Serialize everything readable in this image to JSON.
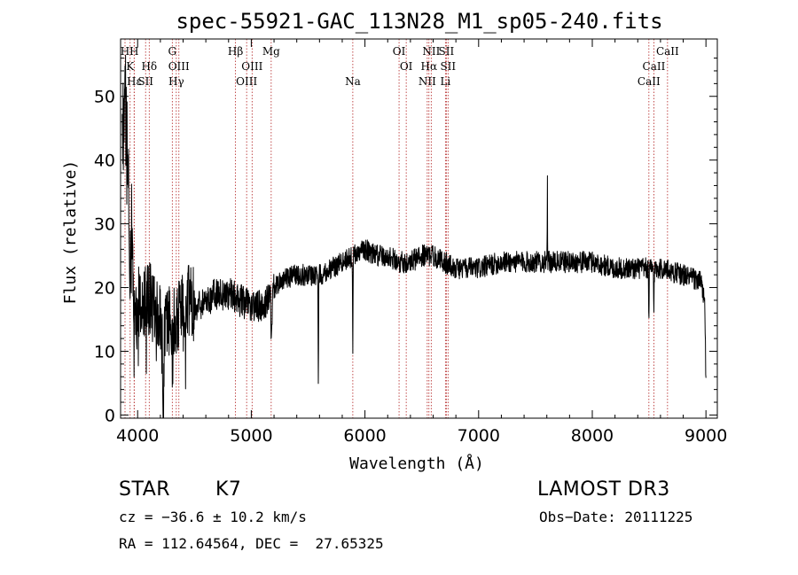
{
  "chart_data": {
    "type": "line",
    "title": "spec-55921-GAC_113N28_M1_sp05-240.fits",
    "xlabel": "Wavelength (Å)",
    "ylabel": "Flux (relative)",
    "xlim": [
      3850,
      9100
    ],
    "ylim": [
      -0.5,
      59
    ],
    "xticks": [
      4000,
      5000,
      6000,
      7000,
      8000,
      9000
    ],
    "yticks": [
      0,
      10,
      20,
      30,
      40,
      50
    ],
    "xtick_labels": [
      "4000",
      "5000",
      "6000",
      "7000",
      "8000",
      "9000"
    ],
    "ytick_labels": [
      "0",
      "10",
      "20",
      "30",
      "40",
      "50"
    ],
    "spectrum_anchors": [
      [
        3870,
        44
      ],
      [
        3890,
        52
      ],
      [
        3910,
        38
      ],
      [
        3930,
        30
      ],
      [
        3950,
        27
      ],
      [
        3970,
        20
      ],
      [
        4000,
        18
      ],
      [
        4050,
        17
      ],
      [
        4100,
        18
      ],
      [
        4150,
        17
      ],
      [
        4200,
        15
      ],
      [
        4250,
        14
      ],
      [
        4300,
        16
      ],
      [
        4350,
        15
      ],
      [
        4400,
        17
      ],
      [
        4450,
        18
      ],
      [
        4500,
        17
      ],
      [
        4600,
        18
      ],
      [
        4700,
        19
      ],
      [
        4800,
        19
      ],
      [
        4900,
        18
      ],
      [
        5000,
        17
      ],
      [
        5100,
        17
      ],
      [
        5180,
        19
      ],
      [
        5250,
        21
      ],
      [
        5400,
        22
      ],
      [
        5500,
        22
      ],
      [
        5600,
        22
      ],
      [
        5700,
        23
      ],
      [
        5800,
        24
      ],
      [
        5900,
        25
      ],
      [
        6000,
        26
      ],
      [
        6100,
        25
      ],
      [
        6200,
        25
      ],
      [
        6300,
        24
      ],
      [
        6400,
        24
      ],
      [
        6500,
        25
      ],
      [
        6600,
        25
      ],
      [
        6700,
        24
      ],
      [
        6800,
        23
      ],
      [
        7000,
        23
      ],
      [
        7200,
        24
      ],
      [
        7400,
        24
      ],
      [
        7600,
        24
      ],
      [
        7800,
        24
      ],
      [
        8000,
        24
      ],
      [
        8200,
        23
      ],
      [
        8400,
        23
      ],
      [
        8600,
        23
      ],
      [
        8800,
        22
      ],
      [
        8950,
        21
      ],
      [
        8990,
        18
      ],
      [
        9000,
        4
      ]
    ],
    "spectrum_features": [
      {
        "center": 3934,
        "depth": 12,
        "width": 5
      },
      {
        "center": 3969,
        "depth": 8,
        "width": 5
      },
      {
        "center": 4226,
        "depth": 16,
        "width": 6
      },
      {
        "center": 4305,
        "depth": 7,
        "width": 8
      },
      {
        "center": 5175,
        "depth": 9,
        "width": 4
      },
      {
        "center": 5183,
        "depth": 5,
        "width": 4
      },
      {
        "center": 5590,
        "depth": 16,
        "width": 3
      },
      {
        "center": 5893,
        "depth": 17,
        "width": 3
      },
      {
        "center": 7605,
        "depth": -13,
        "width": 2
      },
      {
        "center": 8498,
        "depth": 9,
        "width": 3
      },
      {
        "center": 8542,
        "depth": 6,
        "width": 3
      }
    ],
    "lines": [
      {
        "label": "H",
        "wave": 3889,
        "row": 0
      },
      {
        "label": "K",
        "wave": 3934,
        "row": 1
      },
      {
        "label": "H",
        "wave": 3969,
        "row": 0
      },
      {
        "label": "Hε",
        "wave": 3970,
        "row": 2
      },
      {
        "label": "SII",
        "wave": 4070,
        "row": 2
      },
      {
        "label": "Hδ",
        "wave": 4102,
        "row": 1
      },
      {
        "label": "G",
        "wave": 4305,
        "row": 0
      },
      {
        "label": "Hγ",
        "wave": 4340,
        "row": 2
      },
      {
        "label": "OIII",
        "wave": 4363,
        "row": 1
      },
      {
        "label": "Hβ",
        "wave": 4861,
        "row": 0
      },
      {
        "label": "OIII",
        "wave": 4959,
        "row": 2
      },
      {
        "label": "OIII",
        "wave": 5007,
        "row": 1
      },
      {
        "label": "Mg",
        "wave": 5175,
        "row": 0
      },
      {
        "label": "Na",
        "wave": 5893,
        "row": 2
      },
      {
        "label": "OI",
        "wave": 6300,
        "row": 0
      },
      {
        "label": "OI",
        "wave": 6363,
        "row": 1
      },
      {
        "label": "NII",
        "wave": 6548,
        "row": 2
      },
      {
        "label": "NII",
        "wave": 6583,
        "row": 0
      },
      {
        "label": "Hα",
        "wave": 6563,
        "row": 1
      },
      {
        "label": "SII",
        "wave": 6716,
        "row": 0
      },
      {
        "label": "SII",
        "wave": 6731,
        "row": 1
      },
      {
        "label": "Li",
        "wave": 6708,
        "row": 2
      },
      {
        "label": "CaII",
        "wave": 8498,
        "row": 2
      },
      {
        "label": "CaII",
        "wave": 8542,
        "row": 1
      },
      {
        "label": "CaII",
        "wave": 8662,
        "row": 0
      }
    ]
  },
  "info": {
    "class_type": "STAR",
    "subclass": "K7",
    "survey": "LAMOST DR3",
    "cz_text": "cz = −36.6 ± 10.2 km/s",
    "obs_date_text": "Obs−Date: 20111225",
    "radec_text": "RA = 112.64564, DEC =  27.65325"
  },
  "colors": {
    "axis": "#000000",
    "spectrum": "#000000",
    "marker_line": "#b22222"
  }
}
